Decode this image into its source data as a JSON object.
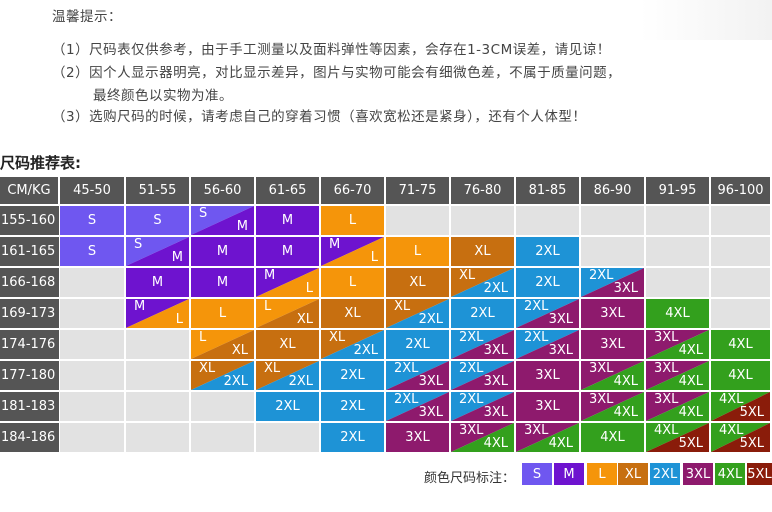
{
  "notes": {
    "title": "温馨提示：",
    "lines": [
      "（1）尺码表仅供参考，由于手工测量以及面料弹性等因素，会存在1-3CM误差，请见谅！",
      "（2）因个人显示器明亮，对比显示差异，图片与实物可能会有细微色差，不属于质量问题，",
      "最终颜色以实物为准。",
      "（3）选购尺码的时候，请考虑自己的穿着习惯（喜欢宽松还是紧身），还有个人体型！"
    ]
  },
  "chart_data": {
    "type": "table",
    "title": "尺码推荐表:",
    "corner": "CM/KG",
    "columns": [
      "45-50",
      "51-55",
      "56-60",
      "61-65",
      "66-70",
      "71-75",
      "76-80",
      "81-85",
      "86-90",
      "91-95",
      "96-100"
    ],
    "rows": [
      {
        "height": "155-160",
        "cells": [
          [
            "S"
          ],
          [
            "S"
          ],
          [
            "S",
            "M"
          ],
          [
            "M"
          ],
          [
            "L"
          ],
          [],
          [],
          [],
          [],
          [],
          []
        ]
      },
      {
        "height": "161-165",
        "cells": [
          [
            "S"
          ],
          [
            "S",
            "M"
          ],
          [
            "M"
          ],
          [
            "M"
          ],
          [
            "M",
            "L"
          ],
          [
            "L"
          ],
          [
            "XL"
          ],
          [
            "2XL"
          ],
          [],
          [],
          []
        ]
      },
      {
        "height": "166-168",
        "cells": [
          [],
          [
            "M"
          ],
          [
            "M"
          ],
          [
            "M",
            "L"
          ],
          [
            "L"
          ],
          [
            "XL"
          ],
          [
            "XL",
            "2XL"
          ],
          [
            "2XL"
          ],
          [
            "2XL",
            "3XL"
          ],
          [],
          []
        ]
      },
      {
        "height": "169-173",
        "cells": [
          [],
          [
            "M",
            "L"
          ],
          [
            "L"
          ],
          [
            "L",
            "XL"
          ],
          [
            "XL"
          ],
          [
            "XL",
            "2XL"
          ],
          [
            "2XL"
          ],
          [
            "2XL",
            "3XL"
          ],
          [
            "3XL"
          ],
          [
            "4XL"
          ],
          []
        ]
      },
      {
        "height": "174-176",
        "cells": [
          [],
          [],
          [
            "L",
            "XL"
          ],
          [
            "XL"
          ],
          [
            "XL",
            "2XL"
          ],
          [
            "2XL"
          ],
          [
            "2XL",
            "3XL"
          ],
          [
            "2XL",
            "3XL"
          ],
          [
            "3XL"
          ],
          [
            "3XL",
            "4XL"
          ],
          [
            "4XL"
          ]
        ]
      },
      {
        "height": "177-180",
        "cells": [
          [],
          [],
          [
            "XL",
            "2XL"
          ],
          [
            "XL",
            "2XL"
          ],
          [
            "2XL"
          ],
          [
            "2XL",
            "3XL"
          ],
          [
            "2XL",
            "3XL"
          ],
          [
            "3XL"
          ],
          [
            "3XL",
            "4XL"
          ],
          [
            "3XL",
            "4XL"
          ],
          [
            "4XL"
          ]
        ]
      },
      {
        "height": "181-183",
        "cells": [
          [],
          [],
          [],
          [
            "2XL"
          ],
          [
            "2XL"
          ],
          [
            "2XL",
            "3XL"
          ],
          [
            "2XL",
            "3XL"
          ],
          [
            "3XL"
          ],
          [
            "3XL",
            "4XL"
          ],
          [
            "3XL",
            "4XL"
          ],
          [
            "4XL",
            "5XL"
          ]
        ]
      },
      {
        "height": "184-186",
        "cells": [
          [],
          [],
          [],
          [],
          [
            "2XL"
          ],
          [
            "3XL"
          ],
          [
            "3XL",
            "4XL"
          ],
          [
            "3XL",
            "4XL"
          ],
          [
            "4XL"
          ],
          [
            "4XL",
            "5XL"
          ],
          [
            "4XL",
            "5XL"
          ]
        ]
      }
    ],
    "legend_label": "颜色尺码标注：",
    "legend": [
      "S",
      "M",
      "L",
      "XL",
      "2XL",
      "3XL",
      "4XL",
      "5XL"
    ]
  },
  "colors": {
    "S": "#6f57f0",
    "M": "#6e13cf",
    "L": "#f5950a",
    "XL": "#c76f10",
    "2XL": "#1e93d6",
    "3XL": "#8e1a6d",
    "4XL": "#33a01d",
    "5XL": "#8a1c0a",
    "header": "#555555",
    "empty": "#e2e2e2"
  }
}
